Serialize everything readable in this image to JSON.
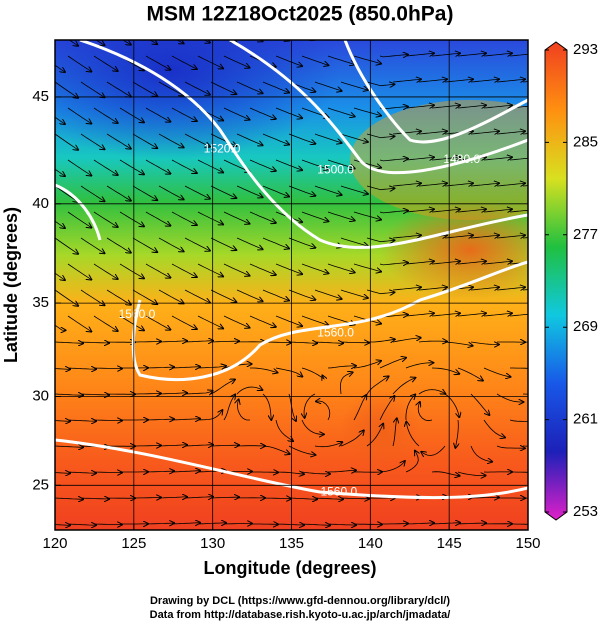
{
  "chart_data": {
    "type": "map",
    "title": "MSM 12Z18Oct2025 (850.0hPa)",
    "xlabel": "Longitude (degrees)",
    "ylabel": "Latitude  (degrees)",
    "projection": "mercator",
    "xlim": [
      120,
      150
    ],
    "ylim": [
      22.4,
      47.5
    ],
    "xticks": [
      120,
      125,
      130,
      135,
      140,
      145,
      150
    ],
    "yticks": [
      25,
      30,
      35,
      40,
      45
    ],
    "grid": true,
    "contour_labels": [
      {
        "label": "1520.0",
        "lon": 130.6,
        "lat": 42.6
      },
      {
        "label": "1500.0",
        "lon": 137.8,
        "lat": 41.6
      },
      {
        "label": "1480.0",
        "lon": 145.8,
        "lat": 42.1
      },
      {
        "label": "1560.0",
        "lon": 125.2,
        "lat": 34.4
      },
      {
        "label": "1560.0",
        "lon": 137.8,
        "lat": 33.4
      },
      {
        "label": "1560.0",
        "lon": 138.0,
        "lat": 24.6
      }
    ],
    "colorbar": {
      "ylim": [
        253,
        293
      ],
      "yticks": [
        253,
        261,
        269,
        277,
        285,
        293
      ],
      "colors": [
        "#e020c8",
        "#1c20b8",
        "#1858e8",
        "#10c8e0",
        "#20c040",
        "#d8e020",
        "#ff9010",
        "#f04020"
      ]
    },
    "footer": [
      "Drawing by DCL (https://www.gfd-dennou.org/library/dcl/)",
      "Data from http://database.rish.kyoto-u.ac.jp/arch/jmadata/"
    ]
  }
}
